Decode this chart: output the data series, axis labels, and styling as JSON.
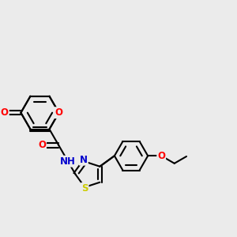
{
  "bg_color": "#ebebeb",
  "bond_color": "#000000",
  "bond_width": 1.5,
  "atom_colors": {
    "O": "#ff0000",
    "N": "#0000cd",
    "S": "#cccc00",
    "C": "#000000",
    "H": "#555555"
  },
  "font_size": 8.5,
  "figsize": [
    3.0,
    3.0
  ],
  "dpi": 100
}
